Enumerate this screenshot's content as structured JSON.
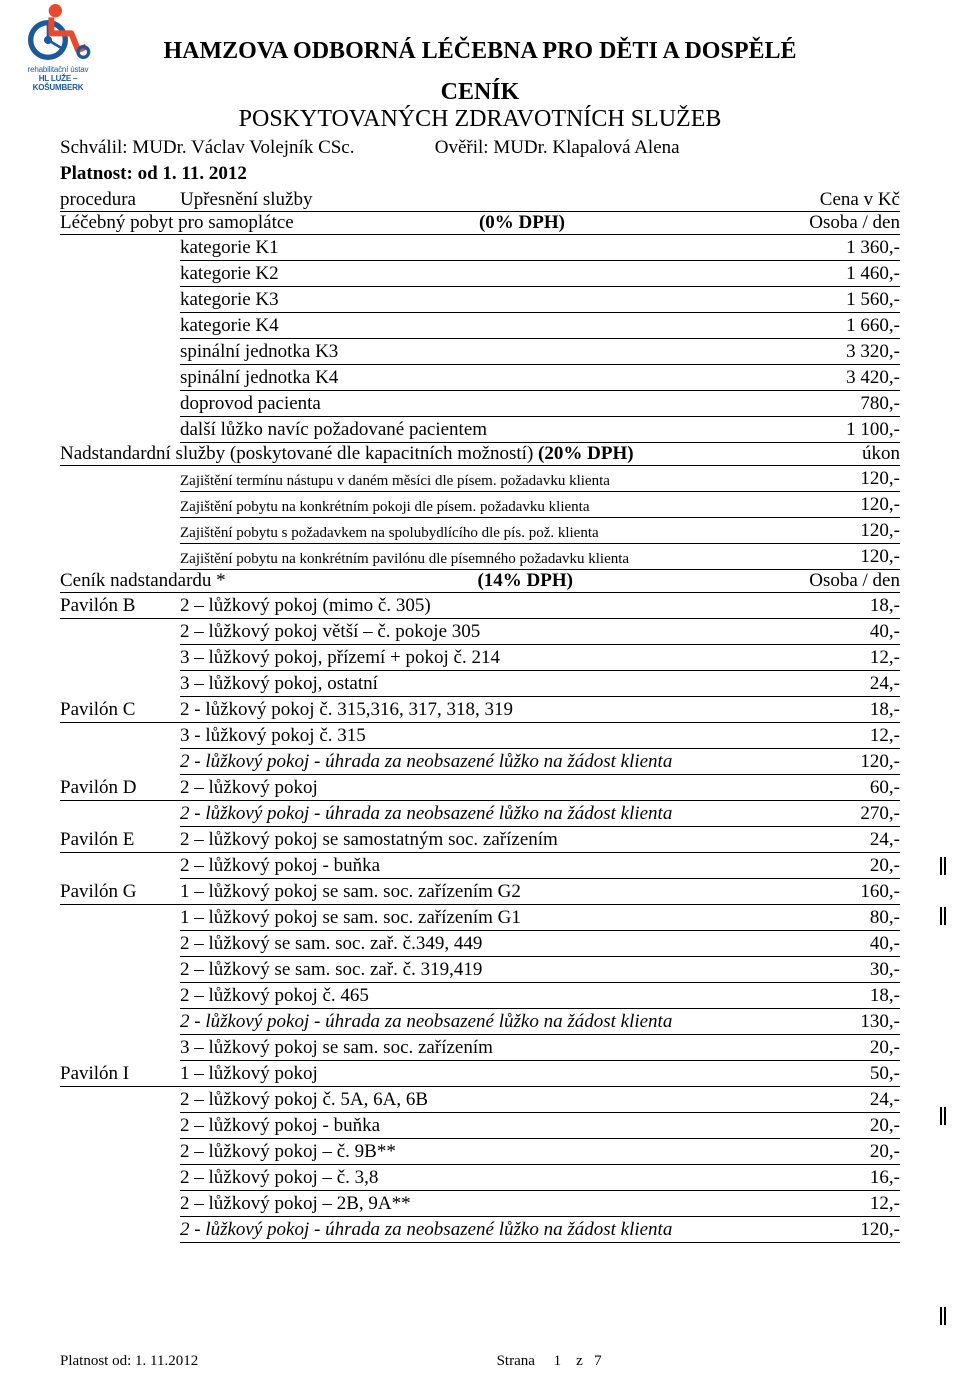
{
  "logo": {
    "line1": "rehabilitační ústav",
    "line2": "HL LUŽE – KOŠUMBERK"
  },
  "header": {
    "main_title": "HAMZOVA ODBORNÁ LÉČEBNA PRO DĚTI A DOSPĚLÉ",
    "subtitle1": "CENÍK",
    "subtitle2": "POSKYTOVANÝCH ZDRAVOTNÍCH SLUŽEB",
    "approved_by_label": "Schválil: MUDr. Václav Volejník CSc.",
    "verified_by_label": "Ověřil: MUDr. Klapalová Alena",
    "validity": "Platnost: od 1. 11. 2012"
  },
  "table_header": {
    "c1": "procedura",
    "c2": "Upřesnění služby",
    "c3": "Cena v Kč"
  },
  "section1": {
    "title": "Léčebný pobyt pro samoplátce",
    "vat": "(0% DPH)",
    "unit": "Osoba / den"
  },
  "s1rows": [
    {
      "label": "kategorie K1",
      "price": "1 360,-"
    },
    {
      "label": "kategorie K2",
      "price": "1 460,-"
    },
    {
      "label": "kategorie K3",
      "price": "1 560,-"
    },
    {
      "label": "kategorie K4",
      "price": "1 660,-"
    },
    {
      "label": "spinální jednotka K3",
      "price": "3 320,-"
    },
    {
      "label": "spinální jednotka K4",
      "price": "3 420,-"
    },
    {
      "label": "doprovod pacienta",
      "price": "780,-"
    },
    {
      "label": "další lůžko navíc požadované pacientem",
      "price": "1 100,-"
    }
  ],
  "section2": {
    "title": "Nadstandardní služby (poskytované dle kapacitních možností) ",
    "vat": "(20% DPH)",
    "unit": "úkon"
  },
  "s2rows": [
    {
      "label": "Zajištění termínu nástupu v daném měsíci dle písem. požadavku klienta",
      "price": "120,-"
    },
    {
      "label": "Zajištění pobytu na konkrétním pokoji dle písem. požadavku klienta",
      "price": "120,-"
    },
    {
      "label": "Zajištění pobytu s požadavkem na spolubydlícího dle pís. pož. klienta",
      "price": "120,-"
    },
    {
      "label": "Zajištění pobytu na konkrétním pavilónu dle písemného požadavku klienta",
      "price": "120,-"
    }
  ],
  "section3": {
    "title": " Ceník nadstandardu     *",
    "vat": "(14% DPH)",
    "unit": "Osoba / den"
  },
  "s3rows": [
    {
      "pav": "Pavilón B",
      "label": "2 – lůžkový pokoj (mimo č. 305)",
      "price": "18,-",
      "ital": false
    },
    {
      "pav": "",
      "label": "2 – lůžkový pokoj větší – č. pokoje 305",
      "price": "40,-",
      "ital": false
    },
    {
      "pav": "",
      "label": "3 – lůžkový pokoj, přízemí + pokoj č. 214",
      "price": "12,-",
      "ital": false
    },
    {
      "pav": "",
      "label": "3 – lůžkový pokoj, ostatní",
      "price": "24,-",
      "ital": false
    },
    {
      "pav": "Pavilón C",
      "label": "2 - lůžkový pokoj č. 315,316, 317, 318, 319",
      "price": "18,-",
      "ital": false
    },
    {
      "pav": "",
      "label": "3 - lůžkový pokoj č. 315",
      "price": "12,-",
      "ital": false
    },
    {
      "pav": "",
      "label": "2 -  lůžkový pokoj - úhrada za neobsazené lůžko na žádost klienta",
      "price": "120,-",
      "ital": true,
      "mark": 857
    },
    {
      "pav": "Pavilón D",
      "label": "2 – lůžkový pokoj",
      "price": "60,-",
      "ital": false
    },
    {
      "pav": "",
      "label": "2 -  lůžkový pokoj - úhrada za neobsazené lůžko na žádost klienta",
      "price": "270,-",
      "ital": true,
      "mark": 907
    },
    {
      "pav": "Pavilón E",
      "label": "2 – lůžkový pokoj se samostatným soc. zařízením",
      "price": "24,-",
      "ital": false
    },
    {
      "pav": "",
      "label": "2 – lůžkový pokoj - buňka",
      "price": "20,-",
      "ital": false
    },
    {
      "pav": "Pavilón G",
      "label": "1 – lůžkový pokoj se sam. soc. zařízením G2",
      "price": "160,-",
      "ital": false
    },
    {
      "pav": "",
      "label": "1 – lůžkový pokoj se sam. soc. zařízením G1",
      "price": "80,-",
      "ital": false
    },
    {
      "pav": "",
      "label": "2 – lůžkový  se sam. soc. zař. č.349, 449",
      "price": "40,-",
      "ital": false
    },
    {
      "pav": "",
      "label": "2 – lůžkový  se sam. soc. zař. č. 319,419",
      "price": "30,-",
      "ital": false
    },
    {
      "pav": "",
      "label": "2 – lůžkový pokoj č. 465",
      "price": "18,-",
      "ital": false
    },
    {
      "pav": "",
      "label": "2 -  lůžkový pokoj - úhrada za neobsazené lůžko na žádost klienta",
      "price": "130,-",
      "ital": true,
      "mark": 1107
    },
    {
      "pav": "",
      "label": "3 – lůžkový pokoj se sam. soc. zařízením",
      "price": "20,-",
      "ital": false
    },
    {
      "pav": "Pavilón I",
      "label": "1 – lůžkový pokoj",
      "price": "50,-",
      "ital": false
    },
    {
      "pav": "",
      "label": "2 – lůžkový pokoj č. 5A, 6A, 6B",
      "price": "24,-",
      "ital": false
    },
    {
      "pav": "",
      "label": "2 – lůžkový pokoj - buňka",
      "price": "20,-",
      "ital": false
    },
    {
      "pav": "",
      "label": "2 – lůžkový pokoj – č. 9B**",
      "price": "20,-",
      "ital": false
    },
    {
      "pav": "",
      "label": "2 – lůžkový pokoj – č. 3,8",
      "price": "16,-",
      "ital": false
    },
    {
      "pav": "",
      "label": "2 – lůžkový pokoj – 2B, 9A**",
      "price": "12,-",
      "ital": false
    },
    {
      "pav": "",
      "label": "2 -  lůžkový pokoj - úhrada za neobsazené lůžko na žádost klienta",
      "price": "120,-",
      "ital": true,
      "mark": 1307
    }
  ],
  "footer": {
    "validity": "Platnost od: 1. 11.2012",
    "page_label": "Strana",
    "page_num": "1",
    "page_sep": "z",
    "page_total": "7"
  }
}
